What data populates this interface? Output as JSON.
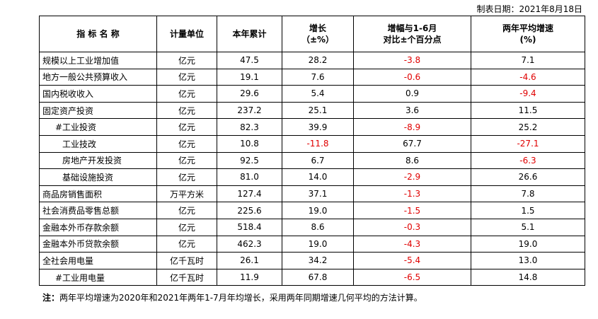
{
  "date_note": "制表日期：2021年8月18日",
  "table": {
    "header": [
      [
        "指 标 名 称"
      ],
      [
        "计量单位"
      ],
      [
        "本年累计"
      ],
      [
        "增长",
        "（±%）"
      ],
      [
        "增幅与1-6月",
        "对比±个百分点"
      ],
      [
        "两年平均增速",
        "(%)"
      ]
    ],
    "rows": [
      [
        "规模以上工业增加值",
        "亿元",
        "47.5",
        "28.2",
        "-3.8",
        "7.1"
      ],
      [
        "地方一般公共预算收入",
        "亿元",
        "19.1",
        "7.6",
        "-0.6",
        "-4.6"
      ],
      [
        "国内税收收入",
        "亿元",
        "29.6",
        "5.4",
        "0.9",
        "-9.4"
      ],
      [
        "固定资产投资",
        "亿元",
        "237.2",
        "25.1",
        "3.6",
        "11.5"
      ],
      [
        "#工业投资",
        "亿元",
        "82.3",
        "39.9",
        "-8.9",
        "25.2"
      ],
      [
        "工业技改",
        "亿元",
        "10.8",
        "-11.8",
        "67.7",
        "-27.1"
      ],
      [
        "房地产开发投资",
        "亿元",
        "92.5",
        "6.7",
        "8.6",
        "-6.3"
      ],
      [
        "基础设施投资",
        "亿元",
        "81.0",
        "14.0",
        "-2.9",
        "26.6"
      ],
      [
        "商品房销售面积",
        "万平方米",
        "127.4",
        "37.1",
        "-1.3",
        "7.8"
      ],
      [
        "社会消费品零售总额",
        "亿元",
        "225.6",
        "19.0",
        "-1.5",
        "1.5"
      ],
      [
        "金融本外币存款余额",
        "亿元",
        "518.4",
        "8.6",
        "-0.3",
        "5.1"
      ],
      [
        "金融本外币贷款余额",
        "亿元",
        "462.3",
        "19.0",
        "-4.3",
        "19.0"
      ],
      [
        "全社会用电量",
        "亿千瓦时",
        "26.1",
        "34.2",
        "-5.4",
        "13.0"
      ],
      [
        "#工业用电量",
        "亿千瓦时",
        "11.9",
        "67.8",
        "-6.5",
        "14.8"
      ]
    ]
  },
  "footnote": {
    "label": "注：",
    "text": "两年平均增速为2020年和2021年两年1-7月年均增长，采用两年同期增速几何平均的方法计算。"
  }
}
